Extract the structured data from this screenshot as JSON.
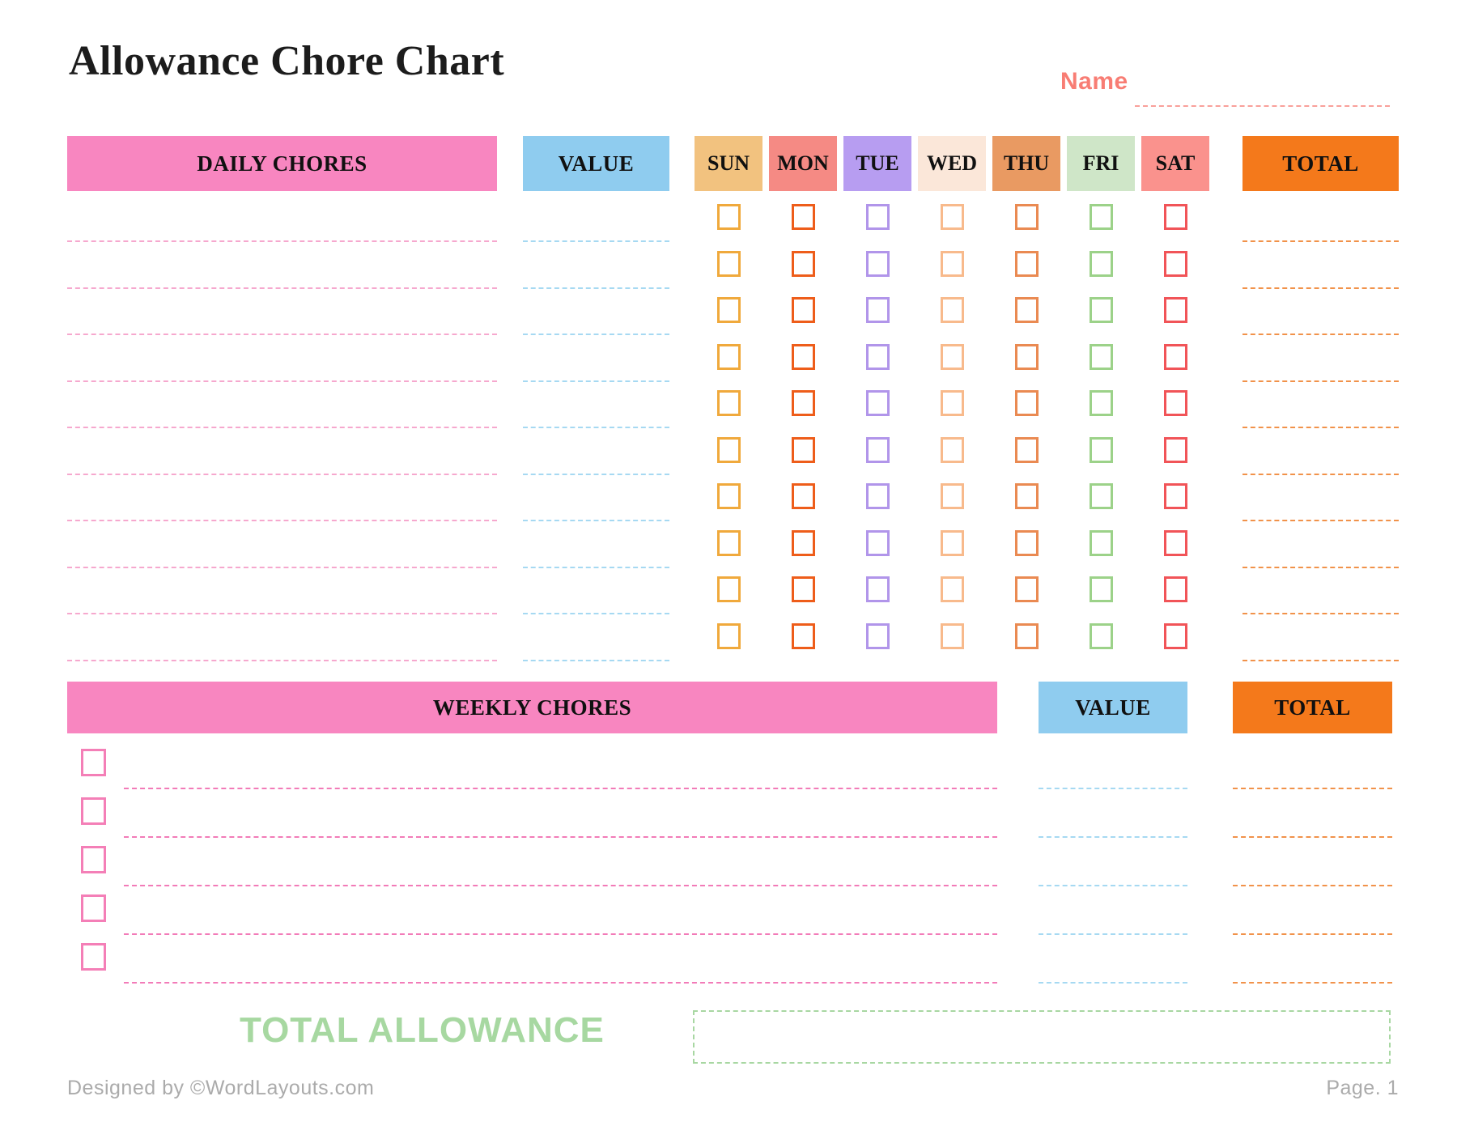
{
  "page": {
    "title": "Allowance Chore Chart",
    "name_label": "Name",
    "footer": {
      "designed_by": "Designed by ©WordLayouts.com",
      "page": "Page. 1"
    }
  },
  "daily": {
    "chores_header": "DAILY CHORES",
    "value_header": "VALUE",
    "total_header": "TOTAL",
    "rows": 10,
    "days": [
      {
        "label": "SUN",
        "header_bg": "#F2C27F",
        "checkbox_border": "#F0A93C"
      },
      {
        "label": "MON",
        "header_bg": "#F58A84",
        "checkbox_border": "#EE5D1A"
      },
      {
        "label": "TUE",
        "header_bg": "#B79DF1",
        "checkbox_border": "#B195EA"
      },
      {
        "label": "WED",
        "header_bg": "#FBE7D9",
        "checkbox_border": "#F8BA8C"
      },
      {
        "label": "THU",
        "header_bg": "#E99A62",
        "checkbox_border": "#EA8A52"
      },
      {
        "label": "FRI",
        "header_bg": "#CFE6C8",
        "checkbox_border": "#9CD289"
      },
      {
        "label": "SAT",
        "header_bg": "#FA928D",
        "checkbox_border": "#F15458"
      }
    ]
  },
  "weekly": {
    "chores_header": "WEEKLY CHORES",
    "value_header": "VALUE",
    "total_header": "TOTAL",
    "rows": 5,
    "checkbox_border": "#F47FB7"
  },
  "total_allowance": {
    "label": "TOTAL ALLOWANCE"
  },
  "colors": {
    "header_pink": "#F886C0",
    "header_blue": "#8FCCEF",
    "header_orange": "#F4791B",
    "chore_line_pink": "#F6A8CE",
    "value_line_blue": "#A6D9F2",
    "total_line_orange": "#F1924A",
    "weekly_line_pink": "#F27BB8",
    "name_accent": "#F87D74",
    "name_line": "#F9A09A",
    "allowance_green": "#A7D8A1",
    "allowance_box_green": "#A8D7A2",
    "footer_gray": "#ABABAB"
  }
}
